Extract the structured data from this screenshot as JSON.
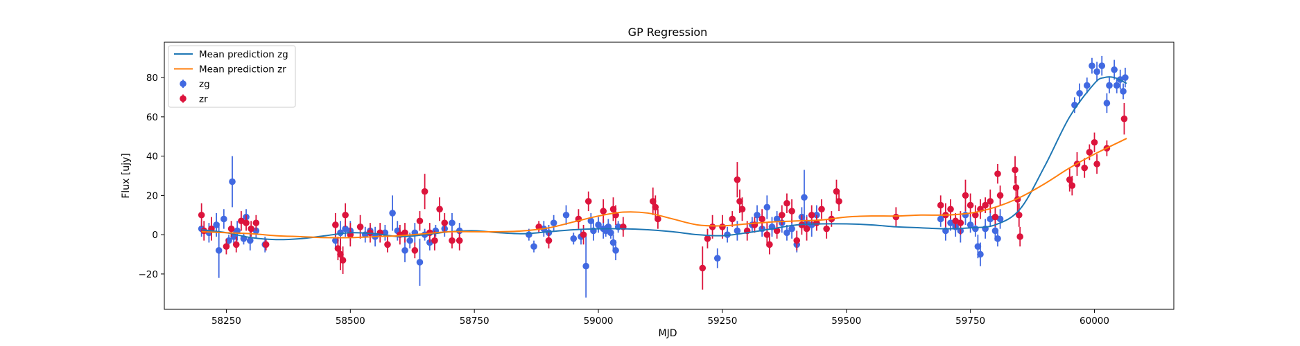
{
  "chart_data": {
    "type": "scatter",
    "title": "GP Regression",
    "xlabel": "MJD",
    "ylabel": "Flux [ujy]",
    "xlim": [
      58125,
      60160
    ],
    "ylim": [
      -38,
      98
    ],
    "xticks": [
      58250,
      58500,
      58750,
      59000,
      59250,
      59500,
      59750,
      60000
    ],
    "yticks": [
      -20,
      0,
      20,
      40,
      60,
      80
    ],
    "grid": false,
    "legend_position": "top-left",
    "series": [
      {
        "name": "Mean prediction zg",
        "kind": "line",
        "color": "#1f77b4",
        "x": [
          58200,
          58250,
          58300,
          58350,
          58400,
          58450,
          58500,
          58550,
          58600,
          58650,
          58700,
          58750,
          58800,
          58850,
          58900,
          58950,
          59000,
          59050,
          59100,
          59150,
          59200,
          59250,
          59300,
          59350,
          59400,
          59450,
          59500,
          59550,
          59600,
          59650,
          59700,
          59750,
          59800,
          59850,
          59900,
          59950,
          60000,
          60020,
          60040,
          60065
        ],
        "y": [
          2.5,
          1.0,
          -1.5,
          -2.5,
          -2.0,
          -0.5,
          1.0,
          0.5,
          -1.0,
          0.0,
          1.5,
          2.0,
          1.0,
          0.5,
          1.5,
          2.5,
          3.0,
          3.0,
          2.5,
          1.5,
          0.0,
          -0.5,
          1.0,
          3.0,
          5.0,
          5.5,
          5.5,
          5.0,
          4.0,
          3.5,
          3.0,
          3.5,
          5.0,
          13.0,
          35.0,
          60.0,
          77.0,
          80.0,
          80.0,
          77.0
        ]
      },
      {
        "name": "Mean prediction zr",
        "kind": "line",
        "color": "#ff7f0e",
        "x": [
          58200,
          58250,
          58300,
          58350,
          58400,
          58450,
          58500,
          58550,
          58600,
          58650,
          58700,
          58750,
          58800,
          58850,
          58900,
          58950,
          59000,
          59050,
          59100,
          59150,
          59200,
          59250,
          59300,
          59350,
          59400,
          59450,
          59500,
          59550,
          59600,
          59650,
          59700,
          59750,
          59800,
          59850,
          59900,
          59950,
          60000,
          60065
        ],
        "y": [
          1.5,
          1.0,
          0.5,
          -0.5,
          -1.0,
          -1.5,
          -1.5,
          -1.0,
          -0.5,
          0.5,
          1.5,
          1.5,
          1.5,
          2.0,
          3.5,
          6.5,
          9.5,
          11.5,
          11.0,
          8.0,
          5.0,
          4.5,
          5.5,
          6.5,
          7.0,
          7.5,
          9.0,
          9.5,
          9.5,
          10.0,
          10.0,
          11.0,
          14.0,
          19.0,
          26.0,
          34.0,
          41.0,
          49.0
        ]
      },
      {
        "name": "zg",
        "kind": "errorbar",
        "color": "#4169e1",
        "points": [
          [
            58200,
            3,
            4
          ],
          [
            58215,
            1,
            5
          ],
          [
            58230,
            5,
            6
          ],
          [
            58235,
            -8,
            14
          ],
          [
            58245,
            8,
            5
          ],
          [
            58255,
            -3,
            3
          ],
          [
            58262,
            27,
            13
          ],
          [
            58265,
            -1,
            4
          ],
          [
            58272,
            2,
            5
          ],
          [
            58285,
            -2,
            3
          ],
          [
            58290,
            9,
            4
          ],
          [
            58298,
            -3,
            5
          ],
          [
            58310,
            2,
            4
          ],
          [
            58328,
            -5,
            4
          ],
          [
            58470,
            -3,
            4
          ],
          [
            58480,
            1,
            6
          ],
          [
            58490,
            3,
            4
          ],
          [
            58500,
            2,
            5
          ],
          [
            58530,
            0,
            4
          ],
          [
            58540,
            2,
            3
          ],
          [
            58550,
            -1,
            5
          ],
          [
            58570,
            1,
            4
          ],
          [
            58585,
            11,
            9
          ],
          [
            58595,
            2,
            5
          ],
          [
            58610,
            -8,
            6
          ],
          [
            58620,
            -3,
            4
          ],
          [
            58630,
            1,
            5
          ],
          [
            58640,
            -14,
            12
          ],
          [
            58650,
            0,
            3
          ],
          [
            58660,
            -4,
            4
          ],
          [
            58672,
            2,
            3
          ],
          [
            58690,
            3,
            4
          ],
          [
            58705,
            6,
            5
          ],
          [
            58720,
            2,
            4
          ],
          [
            58860,
            0,
            3
          ],
          [
            58870,
            -6,
            3
          ],
          [
            58890,
            3,
            4
          ],
          [
            58900,
            1,
            4
          ],
          [
            58910,
            6,
            4
          ],
          [
            58935,
            10,
            5
          ],
          [
            58950,
            -2,
            3
          ],
          [
            58965,
            -1,
            4
          ],
          [
            58975,
            -16,
            16
          ],
          [
            58985,
            7,
            4
          ],
          [
            58990,
            2,
            5
          ],
          [
            59000,
            5,
            4
          ],
          [
            59010,
            3,
            5
          ],
          [
            59015,
            2,
            3
          ],
          [
            59020,
            4,
            4
          ],
          [
            59025,
            1,
            3
          ],
          [
            59030,
            -4,
            4
          ],
          [
            59035,
            -8,
            5
          ],
          [
            59040,
            4,
            3
          ],
          [
            59240,
            -12,
            5
          ],
          [
            59260,
            0,
            4
          ],
          [
            59280,
            2,
            5
          ],
          [
            59310,
            5,
            4
          ],
          [
            59320,
            10,
            5
          ],
          [
            59330,
            3,
            4
          ],
          [
            59340,
            14,
            6
          ],
          [
            59350,
            4,
            5
          ],
          [
            59360,
            8,
            4
          ],
          [
            59370,
            6,
            5
          ],
          [
            59380,
            1,
            4
          ],
          [
            59390,
            3,
            5
          ],
          [
            59400,
            -5,
            4
          ],
          [
            59410,
            9,
            5
          ],
          [
            59415,
            19,
            14
          ],
          [
            59420,
            6,
            4
          ],
          [
            59430,
            5,
            6
          ],
          [
            59440,
            10,
            5
          ],
          [
            59690,
            8,
            4
          ],
          [
            59700,
            2,
            5
          ],
          [
            59710,
            6,
            4
          ],
          [
            59720,
            4,
            5
          ],
          [
            59730,
            2,
            6
          ],
          [
            59740,
            10,
            5
          ],
          [
            59750,
            5,
            4
          ],
          [
            59760,
            3,
            4
          ],
          [
            59765,
            -6,
            6
          ],
          [
            59770,
            -10,
            6
          ],
          [
            59780,
            3,
            5
          ],
          [
            59790,
            8,
            4
          ],
          [
            59800,
            2,
            5
          ],
          [
            59805,
            -2,
            4
          ],
          [
            59810,
            8,
            5
          ],
          [
            59960,
            66,
            4
          ],
          [
            59970,
            72,
            5
          ],
          [
            59985,
            76,
            4
          ],
          [
            59995,
            86,
            4
          ],
          [
            60005,
            83,
            5
          ],
          [
            60015,
            86,
            5
          ],
          [
            60025,
            67,
            5
          ],
          [
            60030,
            76,
            4
          ],
          [
            60040,
            84,
            5
          ],
          [
            60045,
            76,
            4
          ],
          [
            60052,
            79,
            5
          ],
          [
            60058,
            73,
            4
          ],
          [
            60062,
            80,
            5
          ]
        ]
      },
      {
        "name": "zr",
        "kind": "errorbar",
        "color": "#dc143c",
        "points": [
          [
            58200,
            10,
            6
          ],
          [
            58205,
            2,
            5
          ],
          [
            58220,
            3,
            6
          ],
          [
            58250,
            -6,
            4
          ],
          [
            58260,
            3,
            4
          ],
          [
            58270,
            -5,
            4
          ],
          [
            58280,
            7,
            5
          ],
          [
            58290,
            6,
            4
          ],
          [
            58300,
            3,
            4
          ],
          [
            58310,
            6,
            4
          ],
          [
            58330,
            -5,
            3
          ],
          [
            58470,
            5,
            6
          ],
          [
            58475,
            -7,
            6
          ],
          [
            58480,
            -10,
            8
          ],
          [
            58485,
            -13,
            7
          ],
          [
            58490,
            10,
            6
          ],
          [
            58500,
            0,
            6
          ],
          [
            58520,
            4,
            6
          ],
          [
            58540,
            1,
            5
          ],
          [
            58560,
            1,
            5
          ],
          [
            58575,
            -5,
            4
          ],
          [
            58600,
            0,
            5
          ],
          [
            58610,
            1,
            5
          ],
          [
            58630,
            -8,
            4
          ],
          [
            58640,
            7,
            5
          ],
          [
            58650,
            22,
            9
          ],
          [
            58660,
            1,
            5
          ],
          [
            58670,
            -3,
            5
          ],
          [
            58680,
            13,
            6
          ],
          [
            58690,
            6,
            5
          ],
          [
            58705,
            -3,
            4
          ],
          [
            58720,
            -3,
            5
          ],
          [
            58880,
            4,
            3
          ],
          [
            58900,
            -3,
            4
          ],
          [
            58960,
            8,
            5
          ],
          [
            58970,
            0,
            5
          ],
          [
            58980,
            17,
            5
          ],
          [
            59010,
            12,
            6
          ],
          [
            59030,
            13,
            6
          ],
          [
            59035,
            10,
            5
          ],
          [
            59050,
            4,
            5
          ],
          [
            59110,
            17,
            7
          ],
          [
            59115,
            14,
            6
          ],
          [
            59120,
            8,
            5
          ],
          [
            59210,
            -17,
            11
          ],
          [
            59220,
            -2,
            5
          ],
          [
            59230,
            4,
            6
          ],
          [
            59250,
            4,
            6
          ],
          [
            59270,
            8,
            4
          ],
          [
            59280,
            28,
            9
          ],
          [
            59285,
            17,
            6
          ],
          [
            59290,
            13,
            6
          ],
          [
            59300,
            2,
            5
          ],
          [
            59315,
            5,
            4
          ],
          [
            59330,
            8,
            5
          ],
          [
            59340,
            0,
            6
          ],
          [
            59345,
            -5,
            5
          ],
          [
            59360,
            2,
            4
          ],
          [
            59370,
            10,
            5
          ],
          [
            59380,
            16,
            5
          ],
          [
            59390,
            12,
            6
          ],
          [
            59400,
            -3,
            5
          ],
          [
            59410,
            5,
            5
          ],
          [
            59420,
            3,
            6
          ],
          [
            59430,
            10,
            5
          ],
          [
            59440,
            6,
            4
          ],
          [
            59450,
            13,
            5
          ],
          [
            59460,
            3,
            5
          ],
          [
            59470,
            8,
            4
          ],
          [
            59480,
            22,
            6
          ],
          [
            59485,
            17,
            5
          ],
          [
            59600,
            9,
            5
          ],
          [
            59690,
            15,
            5
          ],
          [
            59700,
            10,
            6
          ],
          [
            59710,
            13,
            5
          ],
          [
            59720,
            7,
            4
          ],
          [
            59730,
            6,
            6
          ],
          [
            59740,
            20,
            8
          ],
          [
            59750,
            15,
            6
          ],
          [
            59760,
            10,
            5
          ],
          [
            59770,
            13,
            5
          ],
          [
            59780,
            15,
            4
          ],
          [
            59790,
            17,
            6
          ],
          [
            59800,
            9,
            5
          ],
          [
            59805,
            31,
            5
          ],
          [
            59810,
            20,
            5
          ],
          [
            59840,
            33,
            7
          ],
          [
            59842,
            24,
            6
          ],
          [
            59845,
            18,
            7
          ],
          [
            59848,
            10,
            6
          ],
          [
            59850,
            -1,
            5
          ],
          [
            59950,
            28,
            6
          ],
          [
            59955,
            25,
            5
          ],
          [
            59965,
            36,
            6
          ],
          [
            59980,
            34,
            5
          ],
          [
            59990,
            42,
            4
          ],
          [
            60000,
            47,
            5
          ],
          [
            60005,
            36,
            5
          ],
          [
            60025,
            44,
            4
          ],
          [
            60060,
            59,
            8
          ]
        ]
      }
    ]
  }
}
